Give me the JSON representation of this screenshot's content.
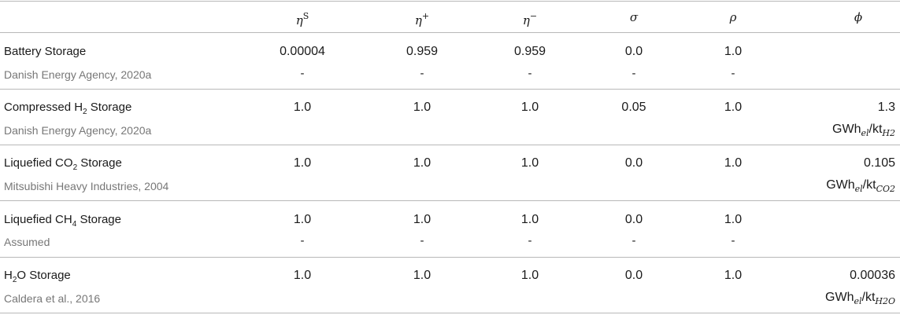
{
  "header": {
    "eta_s": "η",
    "eta_s_sup": "S",
    "eta_plus": "η",
    "eta_plus_sup": "+",
    "eta_minus": "η",
    "eta_minus_sup": "−",
    "sigma": "σ",
    "rho": "ρ",
    "phi": "ϕ"
  },
  "rows": [
    {
      "name_pre": "Battery Storage",
      "name_sub": "",
      "name_post": "",
      "source": "Danish Energy Agency, 2020a",
      "eta_s": "0.00004",
      "eta_plus": "0.959",
      "eta_minus": "0.959",
      "sigma": "0.0",
      "rho": "1.0",
      "phi": "",
      "phi_unit_base": "",
      "phi_unit_sub_el": "",
      "phi_unit_kt": "",
      "phi_unit_sub_species": "",
      "second_line": [
        "-",
        "-",
        "-",
        "-",
        "-"
      ]
    },
    {
      "name_pre": "Compressed H",
      "name_sub": "2",
      "name_post": " Storage",
      "source": "Danish Energy Agency, 2020a",
      "eta_s": "1.0",
      "eta_plus": "1.0",
      "eta_minus": "1.0",
      "sigma": "0.05",
      "rho": "1.0",
      "phi": "1.3",
      "phi_unit_base": "GWh",
      "phi_unit_sub_el": "el",
      "phi_unit_kt": "/kt",
      "phi_unit_sub_species": "H2",
      "second_line": [
        "",
        "",
        "",
        "",
        ""
      ]
    },
    {
      "name_pre": "Liquefied CO",
      "name_sub": "2",
      "name_post": " Storage",
      "source": "Mitsubishi Heavy Industries, 2004",
      "eta_s": "1.0",
      "eta_plus": "1.0",
      "eta_minus": "1.0",
      "sigma": "0.0",
      "rho": "1.0",
      "phi": "0.105",
      "phi_unit_base": "GWh",
      "phi_unit_sub_el": "el",
      "phi_unit_kt": "/kt",
      "phi_unit_sub_species": "CO2",
      "second_line": [
        "",
        "",
        "",
        "",
        ""
      ]
    },
    {
      "name_pre": "Liquefied CH",
      "name_sub": "4",
      "name_post": " Storage",
      "source": "Assumed",
      "eta_s": "1.0",
      "eta_plus": "1.0",
      "eta_minus": "1.0",
      "sigma": "0.0",
      "rho": "1.0",
      "phi": "",
      "phi_unit_base": "",
      "phi_unit_sub_el": "",
      "phi_unit_kt": "",
      "phi_unit_sub_species": "",
      "second_line": [
        "-",
        "-",
        "-",
        "-",
        "-"
      ]
    },
    {
      "name_pre": "H",
      "name_sub": "2",
      "name_post": "O Storage",
      "source": "Caldera et al., 2016",
      "eta_s": "1.0",
      "eta_plus": "1.0",
      "eta_minus": "1.0",
      "sigma": "0.0",
      "rho": "1.0",
      "phi": "0.00036",
      "phi_unit_base": "GWh",
      "phi_unit_sub_el": "el",
      "phi_unit_kt": "/kt",
      "phi_unit_sub_species": "H2O",
      "second_line": [
        "",
        "",
        "",
        "",
        ""
      ]
    }
  ]
}
